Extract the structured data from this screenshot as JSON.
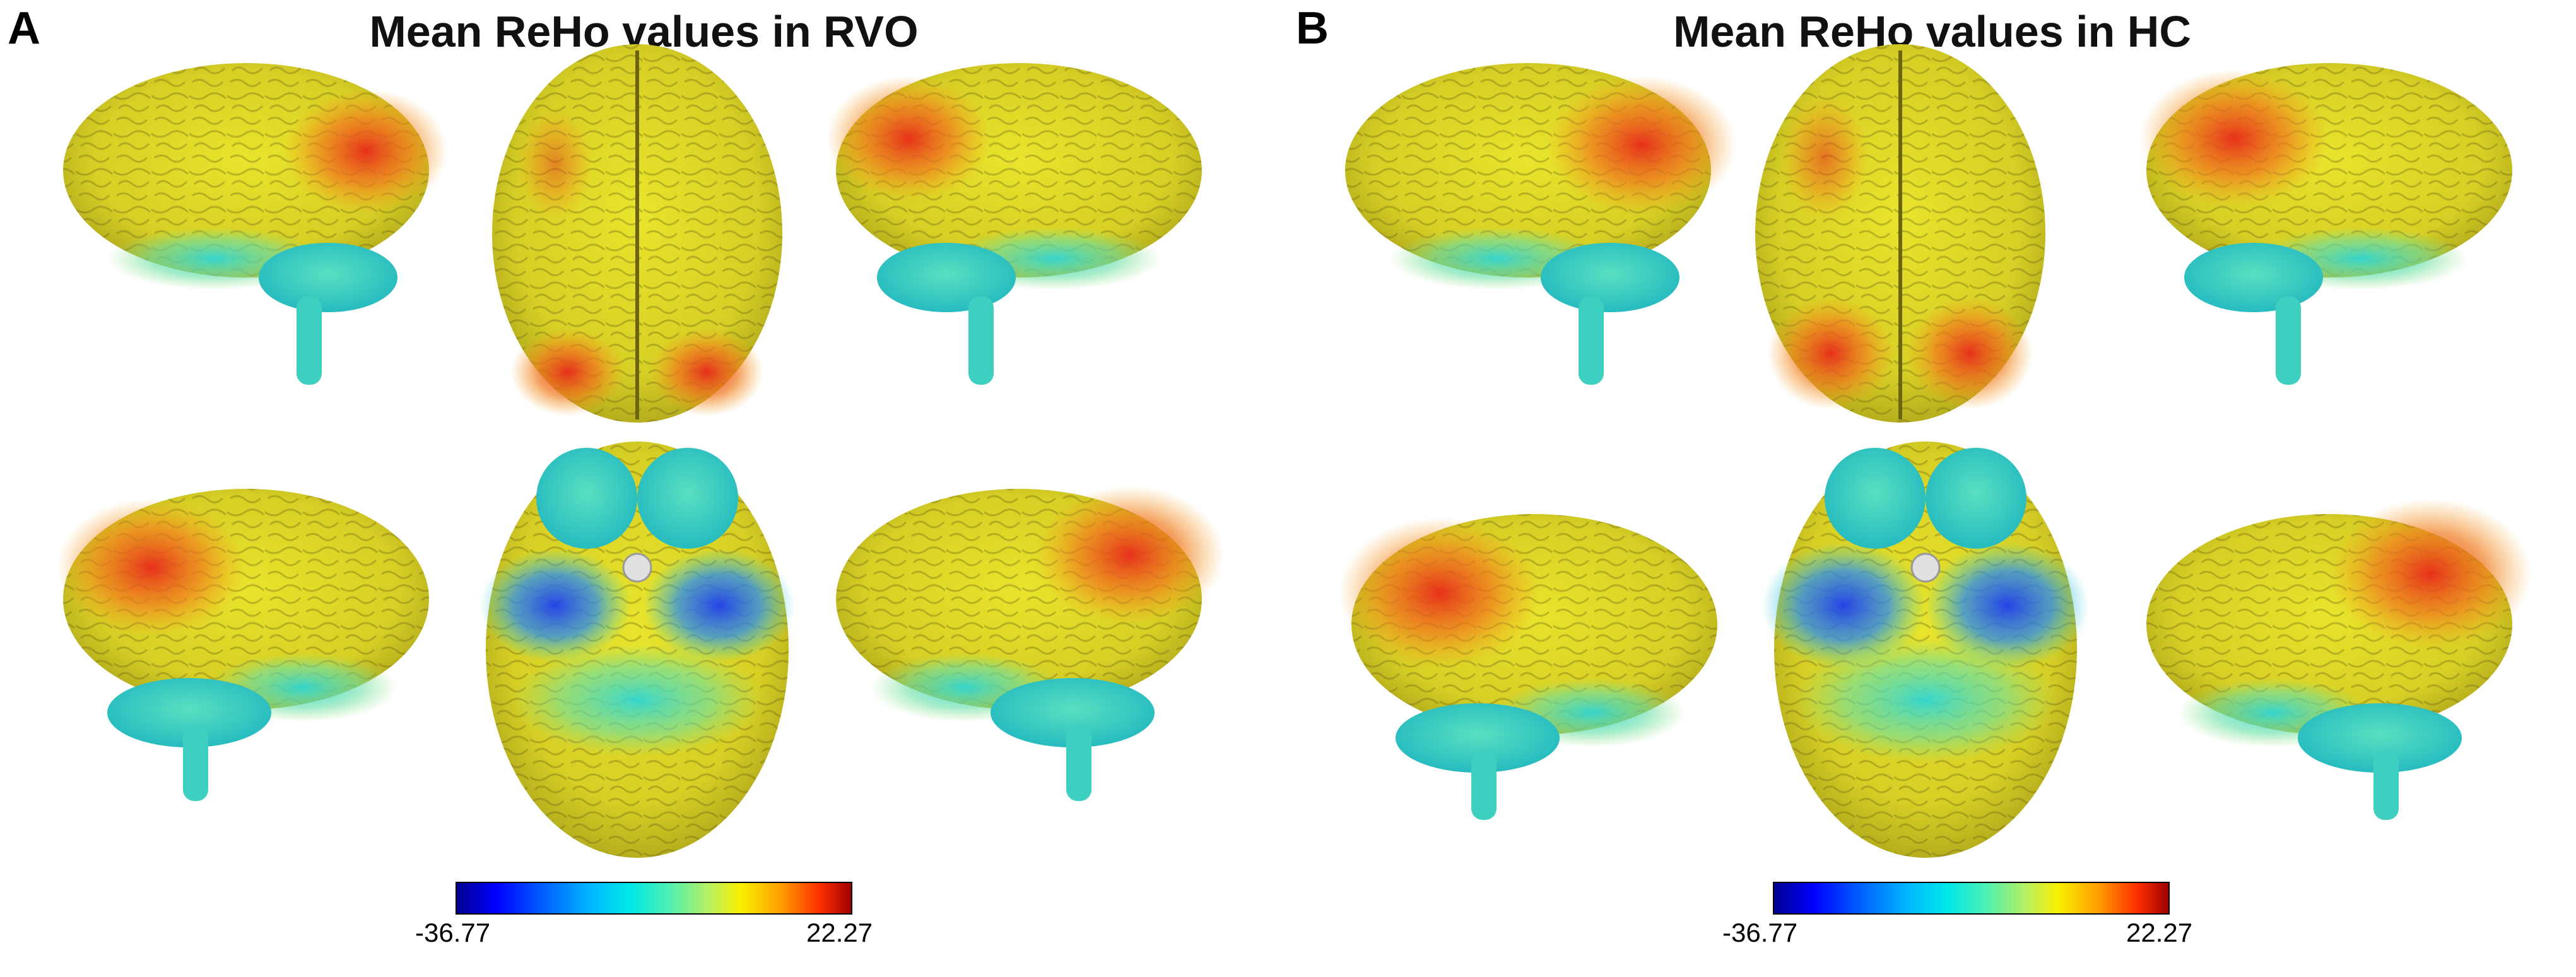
{
  "panels": [
    {
      "letter": "A",
      "title": "Mean ReHo values in RVO",
      "colorbar": {
        "min": "-36.77",
        "max": "22.27"
      }
    },
    {
      "letter": "B",
      "title": "Mean ReHo values in HC",
      "colorbar": {
        "min": "-36.77",
        "max": "22.27"
      }
    }
  ],
  "colors": {
    "high": "#e8281a",
    "mid_high": "#f5a21e",
    "mid": "#e9e22a",
    "mid_low": "#8ee07a",
    "low": "#2fd6d6",
    "lowest": "#1c3cf0",
    "stem": "#3dcfc0"
  }
}
